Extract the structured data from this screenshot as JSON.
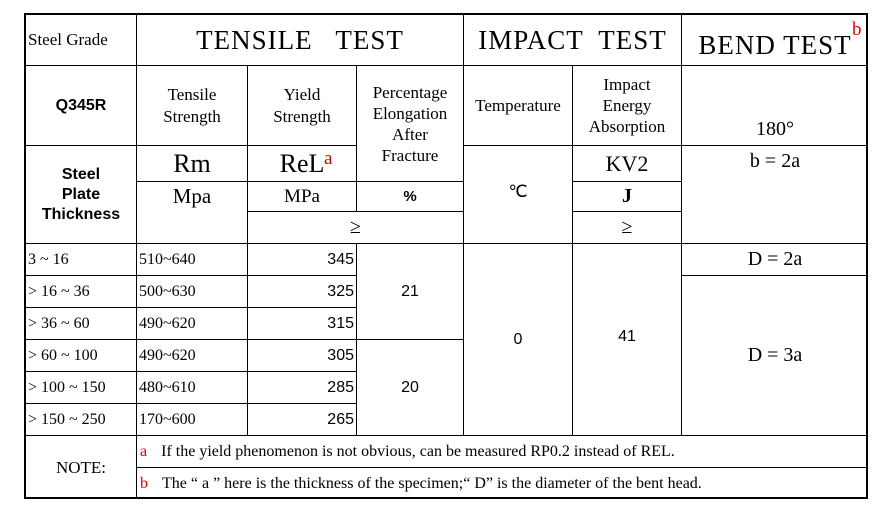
{
  "header": {
    "steel_grade": "Steel Grade",
    "tensile_test": "TENSILE   TEST",
    "impact_test": "IMPACT  TEST",
    "bend_test": "BEND TEST",
    "bend_note_marker": "b"
  },
  "subheader": {
    "grade": "Q345R",
    "tensile_strength": [
      "Tensile",
      "Strength"
    ],
    "yield_strength": [
      "Yield",
      "Strength"
    ],
    "elongation": [
      "Percentage",
      "Elongation",
      "After",
      "Fracture"
    ],
    "temperature": "Temperature",
    "impact_energy": [
      "Impact",
      "Energy",
      "Absorption"
    ],
    "bend_angle": "180°"
  },
  "symbols": {
    "plate_thickness": [
      "Steel",
      "Plate",
      "Thickness"
    ],
    "rm": "Rm",
    "rel": "ReL",
    "rel_marker": "a",
    "kv2": "KV2",
    "bend_b": "b = 2a",
    "unit_mpa_1": "Mpa",
    "unit_mpa_2": "MPa",
    "unit_percent": "%",
    "unit_celsius": "℃",
    "unit_joule": "J",
    "ge_1": "≥",
    "ge_2": "≥"
  },
  "rows": [
    {
      "thickness": "3 ~ 16",
      "tensile": "510~640",
      "yield": "345"
    },
    {
      "thickness": "> 16 ~ 36",
      "tensile": "500~630",
      "yield": "325"
    },
    {
      "thickness": "> 36 ~ 60",
      "tensile": "490~620",
      "yield": "315"
    },
    {
      "thickness": "> 60 ~ 100",
      "tensile": "490~620",
      "yield": "305"
    },
    {
      "thickness": "> 100 ~ 150",
      "tensile": "480~610",
      "yield": "285"
    },
    {
      "thickness": "> 150 ~ 250",
      "tensile": "170~600",
      "yield": "265"
    }
  ],
  "merged": {
    "elongation_1": "21",
    "elongation_2": "20",
    "temperature": "0",
    "impact_energy": "41",
    "bend_d1": "D = 2a",
    "bend_d2": "D = 3a"
  },
  "notes": {
    "label": "NOTE:",
    "a_marker": "a",
    "a_text": "If the yield phenomenon is not obvious, can be measured RP0.2 instead of REL.",
    "b_marker": "b",
    "b_text": "The “ a ” here is the thickness of the specimen;“ D” is the diameter of the bent head."
  }
}
